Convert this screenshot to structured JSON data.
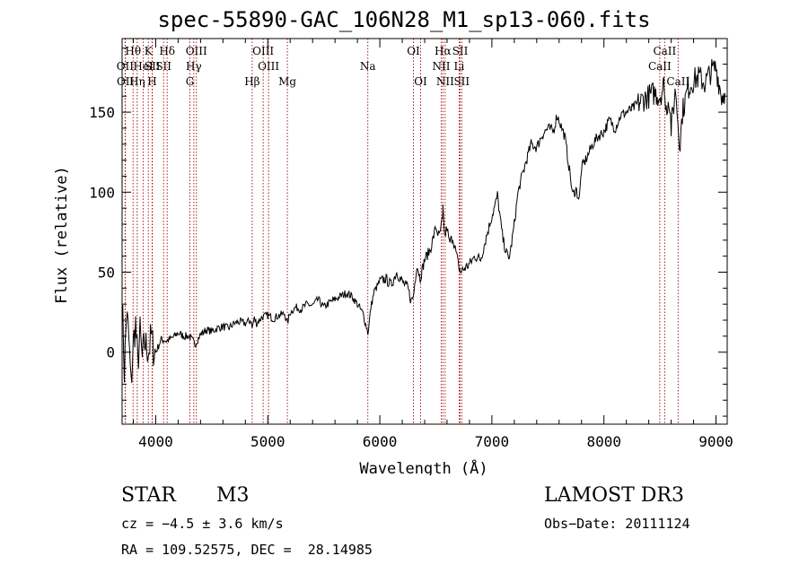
{
  "chart_data": {
    "type": "line",
    "title": "spec-55890-GAC_106N28_M1_sp13-060.fits",
    "xlabel": "Wavelength (Å)",
    "ylabel": "Flux (relative)",
    "xlim": [
      3700,
      9100
    ],
    "ylim": [
      -45,
      196
    ],
    "xticks": [
      4000,
      5000,
      6000,
      7000,
      8000,
      9000
    ],
    "yticks": [
      0,
      50,
      100,
      150
    ],
    "series": [
      {
        "name": "flux",
        "x": [
          3700,
          3720,
          3740,
          3760,
          3780,
          3800,
          3820,
          3840,
          3860,
          3880,
          3900,
          3920,
          3940,
          3960,
          3980,
          4000,
          4050,
          4100,
          4150,
          4200,
          4250,
          4300,
          4350,
          4400,
          4450,
          4500,
          4550,
          4600,
          4650,
          4700,
          4750,
          4800,
          4850,
          4860,
          4880,
          4900,
          4950,
          5000,
          5050,
          5100,
          5150,
          5175,
          5200,
          5250,
          5300,
          5350,
          5400,
          5450,
          5500,
          5550,
          5600,
          5650,
          5700,
          5750,
          5800,
          5850,
          5880,
          5893,
          5905,
          5920,
          5950,
          6000,
          6050,
          6100,
          6150,
          6200,
          6250,
          6280,
          6300,
          6330,
          6360,
          6400,
          6450,
          6500,
          6530,
          6560,
          6563,
          6580,
          6600,
          6620,
          6650,
          6680,
          6700,
          6720,
          6750,
          6800,
          6850,
          6900,
          6950,
          7000,
          7030,
          7050,
          7080,
          7100,
          7130,
          7150,
          7170,
          7200,
          7230,
          7250,
          7300,
          7350,
          7400,
          7450,
          7500,
          7550,
          7580,
          7600,
          7650,
          7680,
          7700,
          7720,
          7750,
          7780,
          7800,
          7850,
          7900,
          7950,
          8000,
          8050,
          8100,
          8150,
          8200,
          8250,
          8300,
          8350,
          8400,
          8450,
          8500,
          8540,
          8550,
          8580,
          8600,
          8640,
          8660,
          8680,
          8700,
          8750,
          8800,
          8850,
          8900,
          8950,
          9000,
          9050,
          9080
        ],
        "values": [
          35,
          -12,
          25,
          8,
          -22,
          5,
          18,
          -8,
          12,
          -5,
          6,
          3,
          1,
          10,
          2,
          0,
          8,
          7,
          9,
          12,
          10,
          10,
          5,
          11,
          14,
          13,
          15,
          16,
          15,
          18,
          19,
          18,
          20,
          15,
          21,
          18,
          22,
          23,
          21,
          23,
          24,
          18,
          25,
          28,
          27,
          30,
          29,
          33,
          28,
          31,
          33,
          35,
          37,
          35,
          30,
          24,
          16,
          12,
          18,
          28,
          38,
          44,
          46,
          42,
          50,
          44,
          40,
          32,
          35,
          55,
          46,
          58,
          64,
          78,
          72,
          83,
          89,
          72,
          78,
          68,
          72,
          62,
          55,
          50,
          52,
          55,
          60,
          58,
          72,
          85,
          92,
          98,
          80,
          70,
          62,
          58,
          65,
          80,
          98,
          105,
          118,
          130,
          128,
          136,
          140,
          138,
          148,
          145,
          135,
          120,
          110,
          98,
          102,
          95,
          115,
          122,
          130,
          135,
          138,
          145,
          140,
          148,
          150,
          152,
          155,
          158,
          160,
          162,
          160,
          168,
          150,
          160,
          140,
          165,
          145,
          130,
          150,
          165,
          170,
          172,
          168,
          175,
          178,
          160,
          162
        ]
      }
    ],
    "lines": [
      {
        "name": "Hθ",
        "x": 3798,
        "row": 1
      },
      {
        "name": "OII",
        "x": 3727,
        "row": 2
      },
      {
        "name": "OII",
        "x": 3729,
        "row": 3
      },
      {
        "name": "Hη",
        "x": 3835,
        "row": 3
      },
      {
        "name": "HeI",
        "x": 3889,
        "row": 2
      },
      {
        "name": "K",
        "x": 3934,
        "row": 1
      },
      {
        "name": "SII",
        "x": 3970,
        "row": 2
      },
      {
        "name": "H",
        "x": 3968,
        "row": 3
      },
      {
        "name": "Hδ",
        "x": 4102,
        "row": 1
      },
      {
        "name": "SII",
        "x": 4070,
        "row": 2
      },
      {
        "name": "OIII",
        "x": 4363,
        "row": 1
      },
      {
        "name": "Hγ",
        "x": 4340,
        "row": 2
      },
      {
        "name": "G",
        "x": 4305,
        "row": 3
      },
      {
        "name": "OIII",
        "x": 4959,
        "row": 1
      },
      {
        "name": "OIII",
        "x": 5007,
        "row": 2
      },
      {
        "name": "Hβ",
        "x": 4861,
        "row": 3
      },
      {
        "name": "Mg",
        "x": 5175,
        "row": 3
      },
      {
        "name": "Na",
        "x": 5893,
        "row": 2
      },
      {
        "name": "OI",
        "x": 6300,
        "row": 1
      },
      {
        "name": "OI",
        "x": 6364,
        "row": 3
      },
      {
        "name": "Hα",
        "x": 6563,
        "row": 1
      },
      {
        "name": "SII",
        "x": 6717,
        "row": 1
      },
      {
        "name": "NII",
        "x": 6548,
        "row": 2
      },
      {
        "name": "Li",
        "x": 6708,
        "row": 2
      },
      {
        "name": "NII",
        "x": 6583,
        "row": 3
      },
      {
        "name": "SII",
        "x": 6731,
        "row": 3
      },
      {
        "name": "CaII",
        "x": 8542,
        "row": 1
      },
      {
        "name": "CaII",
        "x": 8498,
        "row": 2
      },
      {
        "name": "CaII",
        "x": 8662,
        "row": 3
      }
    ],
    "colors": {
      "axis": "#000000",
      "line_marker": "#aa0000",
      "series": "#000000"
    }
  },
  "info": {
    "object_class": "STAR",
    "subclass": "M3",
    "cz": "cz = −4.5 ± 3.6 km/s",
    "coords": "RA = 109.52575, DEC =  28.14985",
    "survey": "LAMOST DR3",
    "obs_date": "Obs−Date: 20111124"
  }
}
